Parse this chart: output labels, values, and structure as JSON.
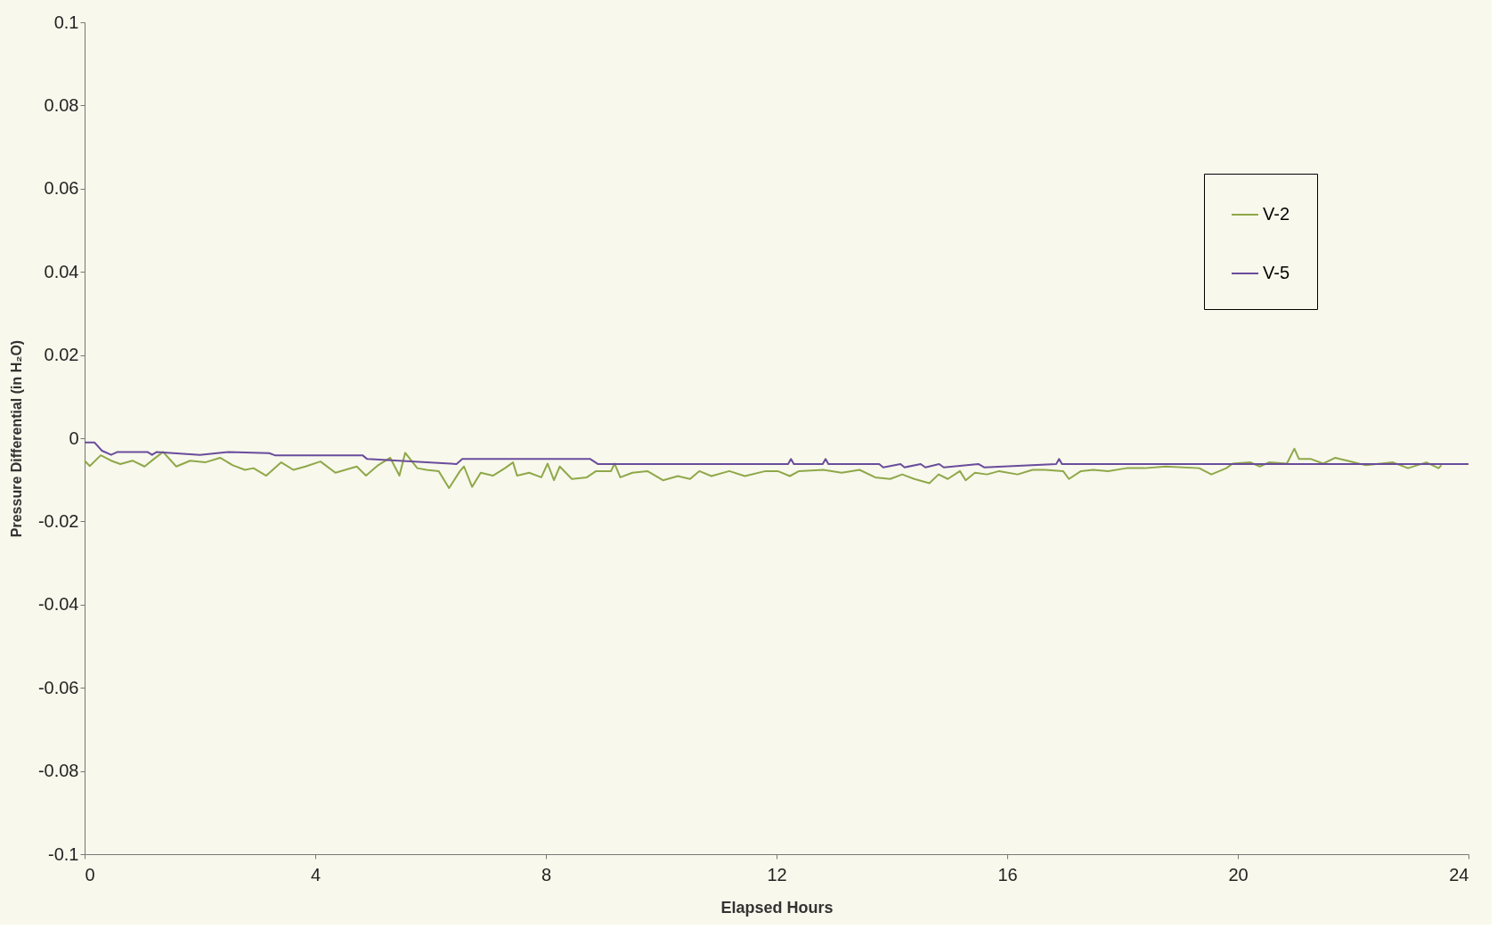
{
  "chart_data": {
    "type": "line",
    "xlabel": "Elapsed Hours",
    "ylabel": "Pressure Differential (in H₂O)",
    "xlim": [
      0,
      24
    ],
    "xticks": [
      0,
      4,
      8,
      12,
      16,
      20,
      24
    ],
    "ylim": [
      -0.1,
      0.1
    ],
    "yticks": [
      -0.1,
      -0.08,
      -0.06,
      -0.04,
      -0.02,
      0,
      0.02,
      0.04,
      0.06,
      0.08,
      0.1
    ],
    "grid": false,
    "legend": "top right",
    "marker": "none",
    "line_style": "solid",
    "series": [
      {
        "name": "V-2",
        "color": "#8fa84a",
        "x": [
          0,
          0.09,
          0.28,
          0.46,
          0.62,
          0.83,
          1.04,
          1.2,
          1.36,
          1.59,
          1.83,
          2.09,
          2.35,
          2.57,
          2.78,
          2.93,
          3.15,
          3.41,
          3.62,
          3.83,
          4.09,
          4.35,
          4.72,
          4.88,
          5.09,
          5.3,
          5.46,
          5.56,
          5.77,
          5.93,
          6.14,
          6.32,
          6.51,
          6.58,
          6.72,
          6.87,
          7.08,
          7.29,
          7.43,
          7.5,
          7.71,
          7.92,
          8.03,
          8.14,
          8.24,
          8.45,
          8.71,
          8.87,
          9.13,
          9.19,
          9.29,
          9.5,
          9.76,
          10.03,
          10.29,
          10.5,
          10.66,
          10.87,
          11.18,
          11.45,
          11.81,
          12.02,
          12.23,
          12.39,
          12.81,
          13.13,
          13.44,
          13.71,
          13.97,
          14.18,
          14.39,
          14.65,
          14.81,
          14.97,
          15.18,
          15.28,
          15.44,
          15.65,
          15.86,
          16.18,
          16.44,
          16.65,
          16.97,
          17.07,
          17.28,
          17.49,
          17.75,
          18.07,
          18.38,
          18.75,
          19.33,
          19.54,
          19.8,
          19.91,
          20.22,
          20.38,
          20.54,
          20.85,
          20.98,
          21.06,
          21.27,
          21.48,
          21.69,
          22.01,
          22.22,
          22.69,
          22.95,
          23.27,
          23.48,
          23.53
        ],
        "values": [
          -0.0054,
          -0.0067,
          -0.0041,
          -0.0054,
          -0.0062,
          -0.0054,
          -0.0068,
          -0.005,
          -0.0033,
          -0.0068,
          -0.0054,
          -0.0058,
          -0.0047,
          -0.0065,
          -0.0076,
          -0.0072,
          -0.009,
          -0.0058,
          -0.0076,
          -0.0068,
          -0.0056,
          -0.0083,
          -0.0068,
          -0.009,
          -0.0065,
          -0.0047,
          -0.009,
          -0.0035,
          -0.0072,
          -0.0076,
          -0.0079,
          -0.012,
          -0.0079,
          -0.0068,
          -0.0117,
          -0.0083,
          -0.009,
          -0.0072,
          -0.0058,
          -0.009,
          -0.0083,
          -0.0094,
          -0.0061,
          -0.0101,
          -0.0068,
          -0.0098,
          -0.0094,
          -0.0079,
          -0.0079,
          -0.0061,
          -0.0094,
          -0.0083,
          -0.0079,
          -0.0101,
          -0.0091,
          -0.0098,
          -0.0079,
          -0.0091,
          -0.0079,
          -0.0091,
          -0.0079,
          -0.0079,
          -0.0091,
          -0.0079,
          -0.0076,
          -0.0083,
          -0.0076,
          -0.0094,
          -0.0098,
          -0.0087,
          -0.0098,
          -0.0108,
          -0.0087,
          -0.0098,
          -0.0079,
          -0.0101,
          -0.0083,
          -0.0087,
          -0.0079,
          -0.0087,
          -0.0076,
          -0.0076,
          -0.0079,
          -0.0098,
          -0.0079,
          -0.0076,
          -0.0079,
          -0.0072,
          -0.0072,
          -0.0068,
          -0.0072,
          -0.0087,
          -0.0072,
          -0.0061,
          -0.0058,
          -0.0068,
          -0.0058,
          -0.0061,
          -0.0025,
          -0.005,
          -0.005,
          -0.0061,
          -0.0047,
          -0.0058,
          -0.0065,
          -0.0058,
          -0.0072,
          -0.0058,
          -0.0072,
          -0.0065
        ]
      },
      {
        "name": "V-5",
        "color": "#6a4c9c",
        "x": [
          0,
          0.17,
          0.3,
          0.46,
          0.57,
          1.09,
          1.17,
          1.25,
          2.0,
          2.5,
          3.2,
          3.3,
          4.82,
          4.9,
          6.45,
          6.55,
          8.77,
          8.9,
          12.2,
          12.25,
          12.3,
          12.8,
          12.85,
          12.9,
          13.78,
          13.85,
          14.15,
          14.22,
          14.5,
          14.58,
          14.82,
          14.9,
          15.5,
          15.6,
          16.85,
          16.9,
          16.95,
          24
        ],
        "values": [
          -0.001,
          -0.001,
          -0.003,
          -0.004,
          -0.0033,
          -0.0033,
          -0.004,
          -0.0033,
          -0.004,
          -0.0033,
          -0.0036,
          -0.0041,
          -0.0041,
          -0.005,
          -0.0062,
          -0.005,
          -0.005,
          -0.0062,
          -0.0062,
          -0.005,
          -0.0062,
          -0.0062,
          -0.005,
          -0.0062,
          -0.0062,
          -0.007,
          -0.0062,
          -0.007,
          -0.0062,
          -0.007,
          -0.0062,
          -0.007,
          -0.0062,
          -0.007,
          -0.0062,
          -0.005,
          -0.0062,
          -0.0062
        ]
      }
    ]
  }
}
